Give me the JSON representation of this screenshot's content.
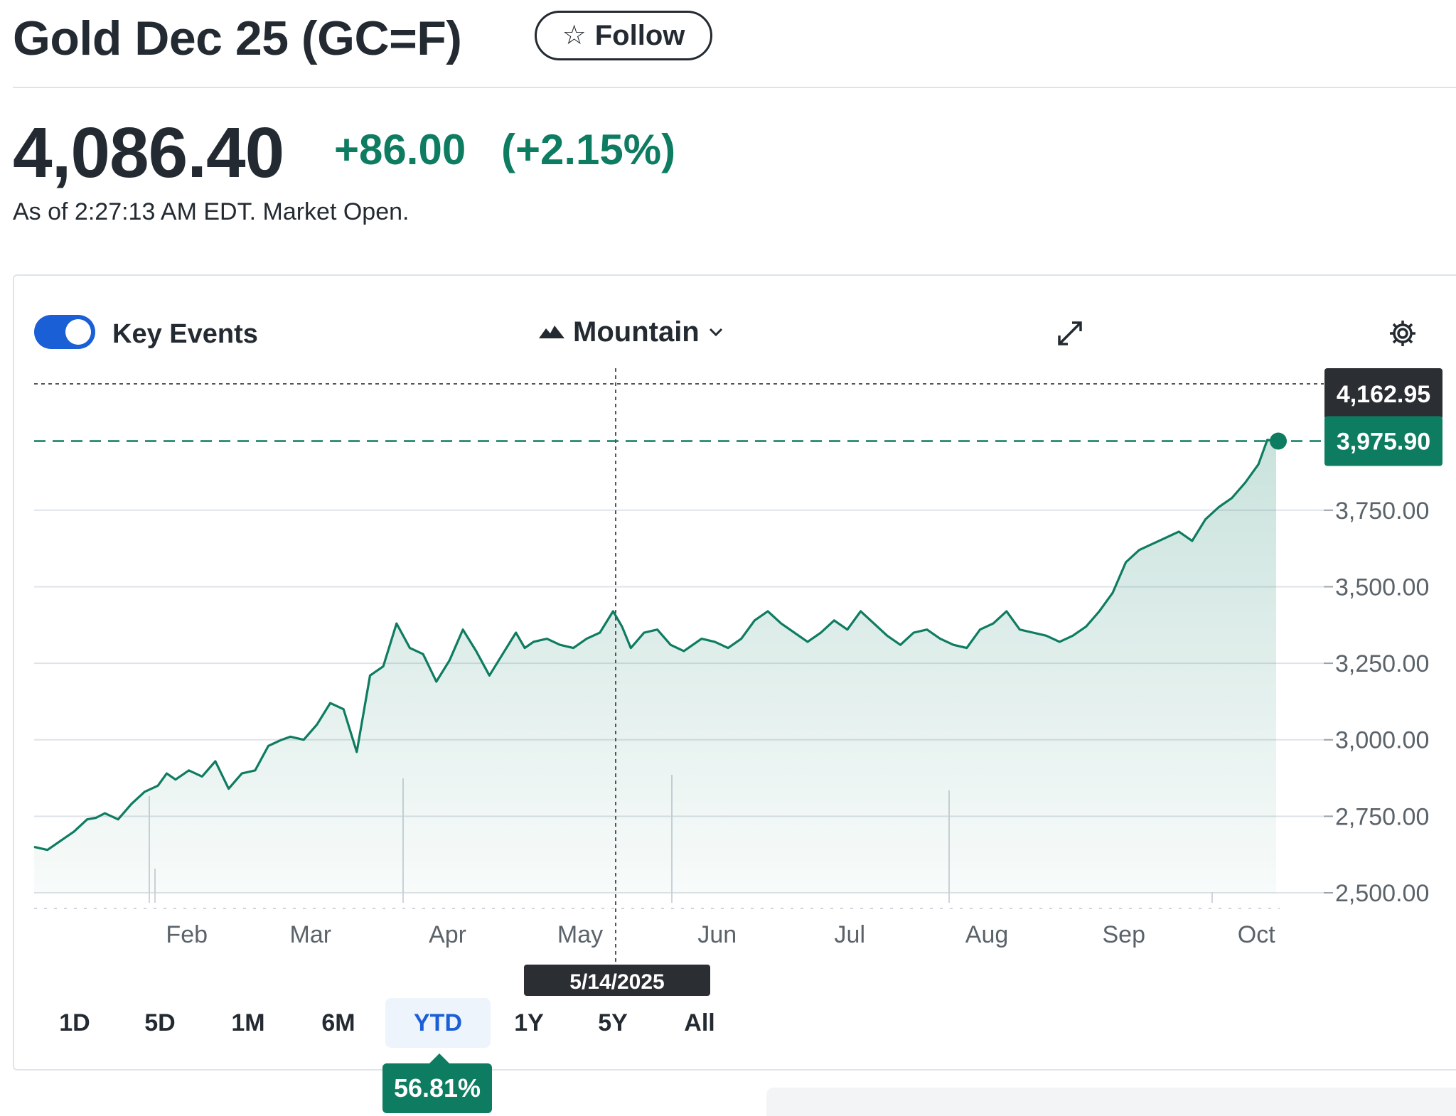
{
  "header": {
    "title": "Gold Dec 25 (GC=F)",
    "follow_label": "Follow"
  },
  "quote": {
    "price": "4,086.40",
    "change": "+86.00",
    "change_pct": "(+2.15%)",
    "as_of": "As of 2:27:13 AM EDT. Market Open."
  },
  "toolbar": {
    "key_events_label": "Key Events",
    "key_events_on": true,
    "chart_type_label": "Mountain"
  },
  "ranges": [
    "1D",
    "5D",
    "1M",
    "6M",
    "YTD",
    "1Y",
    "5Y",
    "All"
  ],
  "active_range": "YTD",
  "ytd_return": "56.81%",
  "crosshair": {
    "date_label": "5/14/2025",
    "price_label": "4,162.95"
  },
  "last_price_label": "3,975.90",
  "colors": {
    "positive": "#0e7c61",
    "accent": "#1a5fd6",
    "label_dark": "#232a31"
  },
  "chart_data": {
    "type": "area",
    "title": "",
    "xlabel": "",
    "ylabel": "",
    "x_tick_labels": [
      "Feb",
      "Mar",
      "Apr",
      "May",
      "Jun",
      "Jul",
      "Aug",
      "Sep",
      "Oct"
    ],
    "y_tick_labels": [
      "2,500.00",
      "2,750.00",
      "3,000.00",
      "3,250.00",
      "3,500.00",
      "3,750.00"
    ],
    "y_ticks": [
      2500,
      2750,
      3000,
      3250,
      3500,
      3750
    ],
    "ylim": [
      2500,
      4162.95
    ],
    "xlim": [
      "2025-01-01",
      "2025-10-09"
    ],
    "grid": true,
    "last_value": 3975.9,
    "series": [
      {
        "x": [
          "2025-01-01",
          "2025-01-04",
          "2025-01-07",
          "2025-01-10",
          "2025-01-13",
          "2025-01-15",
          "2025-01-17",
          "2025-01-20",
          "2025-01-23",
          "2025-01-26",
          "2025-01-29",
          "2025-01-31",
          "2025-02-02",
          "2025-02-05",
          "2025-02-08",
          "2025-02-11",
          "2025-02-14",
          "2025-02-17",
          "2025-02-20",
          "2025-02-23",
          "2025-02-26",
          "2025-02-28",
          "2025-03-03",
          "2025-03-06",
          "2025-03-09",
          "2025-03-12",
          "2025-03-15",
          "2025-03-18",
          "2025-03-21",
          "2025-03-24",
          "2025-03-27",
          "2025-03-30",
          "2025-04-02",
          "2025-04-05",
          "2025-04-08",
          "2025-04-11",
          "2025-04-14",
          "2025-04-17",
          "2025-04-20",
          "2025-04-22",
          "2025-04-24",
          "2025-04-27",
          "2025-04-30",
          "2025-05-03",
          "2025-05-06",
          "2025-05-09",
          "2025-05-12",
          "2025-05-14",
          "2025-05-16",
          "2025-05-19",
          "2025-05-22",
          "2025-05-25",
          "2025-05-28",
          "2025-06-01",
          "2025-06-04",
          "2025-06-07",
          "2025-06-10",
          "2025-06-13",
          "2025-06-16",
          "2025-06-19",
          "2025-06-22",
          "2025-06-25",
          "2025-06-28",
          "2025-07-01",
          "2025-07-04",
          "2025-07-07",
          "2025-07-10",
          "2025-07-13",
          "2025-07-16",
          "2025-07-19",
          "2025-07-22",
          "2025-07-25",
          "2025-07-28",
          "2025-07-31",
          "2025-08-03",
          "2025-08-06",
          "2025-08-09",
          "2025-08-12",
          "2025-08-15",
          "2025-08-18",
          "2025-08-21",
          "2025-08-24",
          "2025-08-27",
          "2025-08-30",
          "2025-09-02",
          "2025-09-05",
          "2025-09-08",
          "2025-09-11",
          "2025-09-14",
          "2025-09-17",
          "2025-09-20",
          "2025-09-23",
          "2025-09-26",
          "2025-09-29",
          "2025-10-02",
          "2025-10-05",
          "2025-10-07",
          "2025-10-09"
        ],
        "values": [
          2650,
          2640,
          2670,
          2700,
          2740,
          2745,
          2760,
          2740,
          2790,
          2830,
          2850,
          2890,
          2870,
          2900,
          2880,
          2930,
          2840,
          2890,
          2900,
          2980,
          3000,
          3010,
          3000,
          3050,
          3120,
          3100,
          2960,
          3210,
          3240,
          3380,
          3300,
          3280,
          3190,
          3260,
          3360,
          3290,
          3210,
          3280,
          3350,
          3300,
          3320,
          3330,
          3310,
          3300,
          3330,
          3350,
          3420,
          3370,
          3300,
          3350,
          3360,
          3310,
          3290,
          3330,
          3320,
          3300,
          3330,
          3390,
          3420,
          3380,
          3350,
          3320,
          3350,
          3390,
          3360,
          3420,
          3380,
          3340,
          3310,
          3350,
          3360,
          3330,
          3310,
          3300,
          3360,
          3380,
          3420,
          3360,
          3350,
          3340,
          3320,
          3340,
          3370,
          3420,
          3480,
          3580,
          3620,
          3640,
          3660,
          3680,
          3650,
          3720,
          3760,
          3790,
          3840,
          3900,
          3980,
          3975.9
        ]
      }
    ]
  }
}
